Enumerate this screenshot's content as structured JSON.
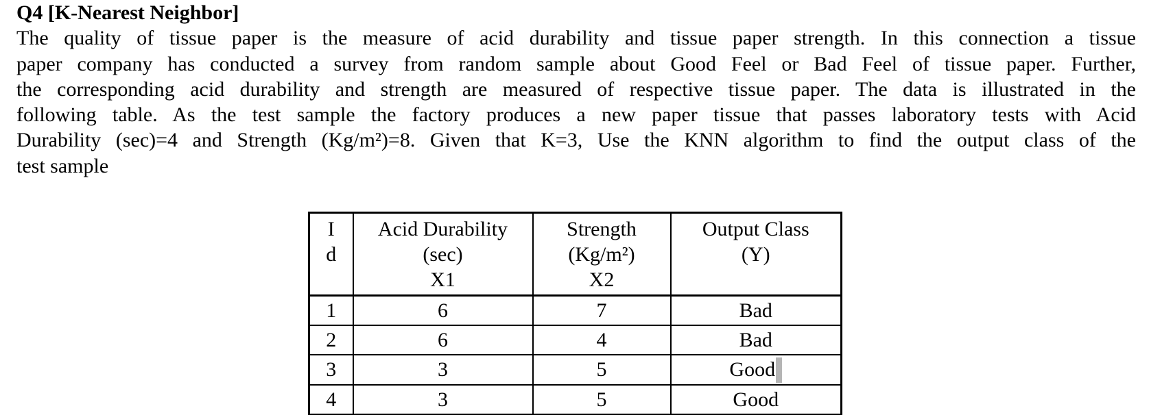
{
  "document": {
    "background": "#ffffff",
    "text_color": "#000000",
    "title": "Q4 [K-Nearest Neighbor]",
    "paragraph_lines": [
      "The quality of tissue paper is the measure of acid durability and tissue paper strength. In this connection a tissue",
      "paper company has conducted a survey from random sample about Good Feel or Bad Feel of tissue paper. Further,",
      "the corresponding acid durability and strength are measured of respective tissue paper. The data is illustrated in the",
      "following table. As the test sample the factory produces a new paper tissue that passes laboratory tests with Acid",
      "Durability (sec)=4 and Strength (Kg/m²)=8. Given that K=3, Use the KNN algorithm to find the output class of the",
      "test sample"
    ]
  },
  "table": {
    "columns": [
      {
        "header_lines": [
          "I",
          "d"
        ]
      },
      {
        "header_lines": [
          "Acid Durability",
          "(sec)",
          "X1"
        ]
      },
      {
        "header_lines": [
          "Strength",
          "(Kg/m²)",
          "X2"
        ]
      },
      {
        "header_lines": [
          "Output Class",
          "(Y)"
        ]
      }
    ],
    "rows": [
      {
        "id": "1",
        "x1": "6",
        "x2": "7",
        "y": "Bad"
      },
      {
        "id": "2",
        "x1": "6",
        "x2": "4",
        "y": "Bad"
      },
      {
        "id": "3",
        "x1": "3",
        "x2": "5",
        "y": "Good"
      },
      {
        "id": "4",
        "x1": "3",
        "x2": "5",
        "y": "Good"
      }
    ]
  },
  "text_cursor": {
    "color": "#b5b5b5"
  }
}
